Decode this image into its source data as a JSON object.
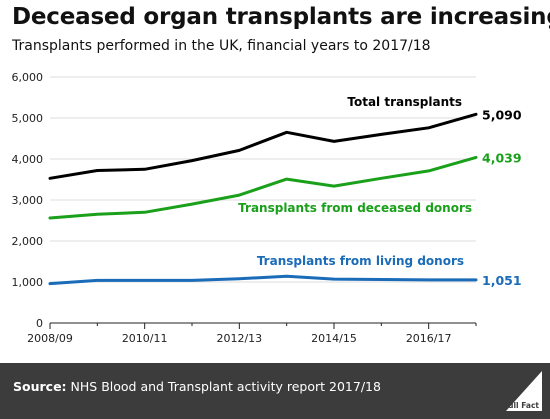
{
  "title": "Deceased organ transplants are increasing",
  "subtitle": "Transplants performed in the UK, financial years to 2017/18",
  "footer": {
    "source_label": "Source:",
    "source_text": "NHS Blood and Transplant activity report 2017/18",
    "logo_text": "Full Fact"
  },
  "colors": {
    "total": "#000000",
    "deceased": "#1aa01a",
    "living": "#1a6bb8",
    "grid": "#dddddd",
    "footer": "#3c3c3c"
  },
  "chart_data": {
    "type": "line",
    "x": [
      "2008/09",
      "2009/10",
      "2010/11",
      "2011/12",
      "2012/13",
      "2013/14",
      "2014/15",
      "2015/16",
      "2016/17",
      "2017/18"
    ],
    "xtick_labels": [
      "2008/09",
      "2010/11",
      "2012/13",
      "2014/15",
      "2016/17"
    ],
    "ylim": [
      0,
      6000
    ],
    "yticks": [
      0,
      1000,
      2000,
      3000,
      4000,
      5000,
      6000
    ],
    "ytick_labels": [
      "0",
      "1,000",
      "2,000",
      "3,000",
      "4,000",
      "5,000",
      "6,000"
    ],
    "grid": true,
    "series": [
      {
        "key": "total",
        "name": "Total transplants",
        "values": [
          3530,
          3720,
          3750,
          3960,
          4210,
          4650,
          4430,
          4600,
          4760,
          5090
        ],
        "end_label": "5,090"
      },
      {
        "key": "deceased",
        "name": "Transplants from deceased donors",
        "values": [
          2560,
          2650,
          2700,
          2900,
          3120,
          3510,
          3340,
          3530,
          3710,
          4039
        ],
        "end_label": "4,039"
      },
      {
        "key": "living",
        "name": "Transplants from living donors",
        "values": [
          960,
          1040,
          1040,
          1040,
          1080,
          1140,
          1070,
          1060,
          1050,
          1051
        ],
        "end_label": "1,051"
      }
    ]
  }
}
